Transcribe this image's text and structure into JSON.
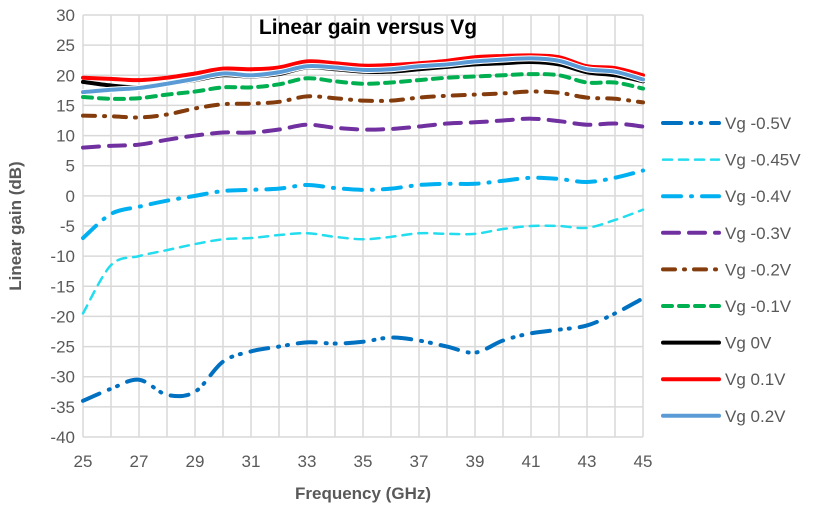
{
  "chart_data": {
    "type": "line",
    "title": "Linear gain versus Vg",
    "xlabel": "Frequency (GHz)",
    "ylabel": "Linear gain (dB)",
    "xlim": [
      25,
      45
    ],
    "ylim": [
      -40,
      30
    ],
    "xticks": [
      25,
      27,
      29,
      31,
      33,
      35,
      37,
      39,
      41,
      43,
      45
    ],
    "yticks": [
      -40,
      -35,
      -30,
      -25,
      -20,
      -15,
      -10,
      -5,
      0,
      5,
      10,
      15,
      20,
      25,
      30
    ],
    "grid": true,
    "legend_position": "right",
    "x": [
      25,
      26,
      27,
      28,
      29,
      30,
      31,
      32,
      33,
      34,
      35,
      36,
      37,
      38,
      39,
      40,
      41,
      42,
      43,
      44,
      45
    ],
    "series": [
      {
        "name": "Vg -0.5V",
        "color": "#0070C0",
        "dash": "long-dash-dot-dot",
        "values": [
          -34,
          -32,
          -30.5,
          -33,
          -32.5,
          -27.5,
          -25.8,
          -25,
          -24.3,
          -24.5,
          -24.2,
          -23.5,
          -24,
          -25,
          -26,
          -24,
          -22.8,
          -22.2,
          -21.5,
          -19.5,
          -17
        ]
      },
      {
        "name": "Vg -0.45V",
        "color": "#22DDEE",
        "dash": "dash",
        "values": [
          -19.5,
          -11.5,
          -10,
          -9,
          -8,
          -7.2,
          -7,
          -6.5,
          -6.2,
          -6.8,
          -7.2,
          -6.8,
          -6.2,
          -6.3,
          -6.3,
          -5.5,
          -5,
          -5,
          -5.3,
          -4,
          -2.3
        ]
      },
      {
        "name": "Vg -0.4V",
        "color": "#00B0F0",
        "dash": "long-dash-dot",
        "values": [
          -7,
          -3,
          -1.8,
          -0.8,
          0,
          0.8,
          1,
          1.2,
          1.8,
          1.3,
          1,
          1.2,
          1.8,
          2,
          2,
          2.5,
          3,
          2.8,
          2.3,
          3,
          4.2
        ]
      },
      {
        "name": "Vg -0.3V",
        "color": "#7030A0",
        "dash": "long-dash",
        "values": [
          8,
          8.3,
          8.5,
          9.3,
          10,
          10.5,
          10.5,
          11,
          11.8,
          11.3,
          11,
          11.1,
          11.5,
          12,
          12.2,
          12.5,
          12.8,
          12.4,
          11.8,
          12,
          11.5
        ]
      },
      {
        "name": "Vg -0.2V",
        "color": "#843C0C",
        "dash": "dash-dot",
        "values": [
          13.3,
          13.2,
          13,
          13.5,
          14.5,
          15.2,
          15.3,
          15.6,
          16.5,
          16.2,
          15.8,
          15.8,
          16.3,
          16.6,
          16.8,
          17,
          17.3,
          17.1,
          16.3,
          16.1,
          15.5
        ]
      },
      {
        "name": "Vg -0.1V",
        "color": "#00B050",
        "dash": "dash",
        "values": [
          16.4,
          16.1,
          16.2,
          16.8,
          17.3,
          18,
          18,
          18.5,
          19.5,
          19,
          18.6,
          18.8,
          19.2,
          19.6,
          19.8,
          20,
          20.2,
          20,
          18.8,
          18.8,
          17.8
        ]
      },
      {
        "name": "Vg 0V",
        "color": "#000000",
        "dash": "solid",
        "values": [
          18.9,
          18.3,
          18,
          18.6,
          19.2,
          20,
          19.8,
          20.2,
          21.3,
          21,
          20.6,
          20.6,
          21,
          21.4,
          21.8,
          22,
          22.2,
          21.8,
          20.5,
          20,
          19
        ]
      },
      {
        "name": "Vg 0.1V",
        "color": "#FF0000",
        "dash": "solid",
        "values": [
          19.6,
          19.4,
          19.2,
          19.6,
          20.3,
          21.1,
          21,
          21.3,
          22.3,
          22,
          21.6,
          21.7,
          22,
          22.4,
          23,
          23.2,
          23.3,
          23,
          21.5,
          21.2,
          20
        ]
      },
      {
        "name": "Vg 0.2V",
        "color": "#5B9BD5",
        "dash": "solid",
        "values": [
          17.2,
          17.6,
          17.9,
          18.6,
          19.4,
          20.3,
          20,
          20.5,
          21.5,
          21.3,
          20.9,
          21,
          21.5,
          21.8,
          22.3,
          22.6,
          22.8,
          22.4,
          21,
          20.6,
          19.3
        ]
      }
    ]
  }
}
